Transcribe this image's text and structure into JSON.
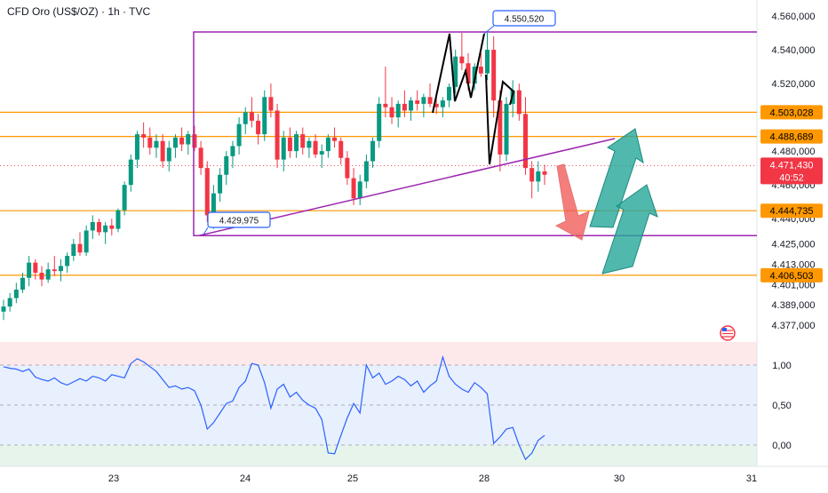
{
  "header": {
    "title": "CFD Oro (US$/OZ) · 1h · TVC"
  },
  "colors": {
    "up": "#089981",
    "down": "#f23645",
    "purple": "#9c27b0",
    "orange": "#ff9800",
    "rsi_line": "#2962ff",
    "price_badge": "#f23645",
    "arrow_green": "#26a69a",
    "arrow_red": "#ef5350"
  },
  "annotations": {
    "peak_label": "4.550,520",
    "low_label": "4.429,975"
  },
  "price_axis": {
    "ticks": [
      "4.560,000",
      "4.540,000",
      "4.520,000",
      "4.480,000",
      "4.460,000",
      "4.440,000",
      "4.425,000",
      "4.413,000",
      "4.401,000",
      "4.389,000",
      "4.377,000"
    ],
    "level_badges": [
      "4.503,028",
      "4.488,689",
      "4.444,735",
      "4.406,503"
    ],
    "current_price": "4.471,430",
    "countdown": "40:52"
  },
  "rsi_axis": {
    "ticks": [
      "1,00",
      "0,50",
      "0,00"
    ]
  },
  "time_axis": {
    "ticks": [
      "23",
      "24",
      "25",
      "28",
      "30",
      "31"
    ]
  },
  "chart_data": {
    "type": "candlestick",
    "title": "CFD Oro (US$/OZ) · 1h · TVC",
    "ylim": [
      4372,
      4565
    ],
    "horizontal_levels": [
      4503.028,
      4488.689,
      4444.735,
      4406.503
    ],
    "rectangle": {
      "top": 4550.52,
      "bottom": 4429.975
    },
    "current_price": 4471.43,
    "candles": [
      [
        4385,
        4392,
        4380,
        4388
      ],
      [
        4388,
        4396,
        4385,
        4393
      ],
      [
        4393,
        4402,
        4390,
        4398
      ],
      [
        4398,
        4408,
        4396,
        4405
      ],
      [
        4405,
        4418,
        4400,
        4414
      ],
      [
        4414,
        4416,
        4404,
        4408
      ],
      [
        4408,
        4412,
        4400,
        4404
      ],
      [
        4404,
        4414,
        4402,
        4410
      ],
      [
        4410,
        4418,
        4406,
        4409
      ],
      [
        4409,
        4416,
        4403,
        4412
      ],
      [
        4412,
        4420,
        4408,
        4418
      ],
      [
        4418,
        4428,
        4415,
        4425
      ],
      [
        4425,
        4432,
        4418,
        4420
      ],
      [
        4420,
        4436,
        4418,
        4433
      ],
      [
        4433,
        4442,
        4428,
        4438
      ],
      [
        4438,
        4440,
        4430,
        4432
      ],
      [
        4432,
        4438,
        4425,
        4436
      ],
      [
        4436,
        4440,
        4430,
        4434
      ],
      [
        4434,
        4446,
        4432,
        4445
      ],
      [
        4445,
        4462,
        4442,
        4460
      ],
      [
        4460,
        4478,
        4456,
        4475
      ],
      [
        4475,
        4492,
        4470,
        4490
      ],
      [
        4490,
        4497,
        4482,
        4488
      ],
      [
        4488,
        4494,
        4478,
        4482
      ],
      [
        4482,
        4490,
        4476,
        4486
      ],
      [
        4486,
        4490,
        4470,
        4474
      ],
      [
        4474,
        4486,
        4468,
        4482
      ],
      [
        4482,
        4490,
        4476,
        4488
      ],
      [
        4488,
        4494,
        4480,
        4484
      ],
      [
        4484,
        4492,
        4478,
        4490
      ],
      [
        4490,
        4495,
        4480,
        4482
      ],
      [
        4482,
        4486,
        4466,
        4470
      ],
      [
        4470,
        4474,
        4438,
        4442
      ],
      [
        4442,
        4460,
        4434,
        4455
      ],
      [
        4455,
        4470,
        4450,
        4466
      ],
      [
        4466,
        4480,
        4460,
        4477
      ],
      [
        4477,
        4486,
        4470,
        4483
      ],
      [
        4483,
        4500,
        4478,
        4496
      ],
      [
        4496,
        4506,
        4490,
        4503
      ],
      [
        4503,
        4512,
        4494,
        4498
      ],
      [
        4498,
        4502,
        4484,
        4490
      ],
      [
        4490,
        4516,
        4486,
        4512
      ],
      [
        4512,
        4520,
        4500,
        4504
      ],
      [
        4504,
        4508,
        4470,
        4475
      ],
      [
        4475,
        4492,
        4468,
        4488
      ],
      [
        4488,
        4494,
        4476,
        4480
      ],
      [
        4480,
        4492,
        4476,
        4490
      ],
      [
        4490,
        4494,
        4478,
        4482
      ],
      [
        4482,
        4488,
        4476,
        4486
      ],
      [
        4486,
        4490,
        4476,
        4478
      ],
      [
        4478,
        4484,
        4470,
        4480
      ],
      [
        4480,
        4490,
        4476,
        4488
      ],
      [
        4488,
        4494,
        4482,
        4486
      ],
      [
        4486,
        4488,
        4472,
        4476
      ],
      [
        4476,
        4480,
        4460,
        4464
      ],
      [
        4464,
        4470,
        4448,
        4452
      ],
      [
        4452,
        4466,
        4448,
        4462
      ],
      [
        4462,
        4478,
        4458,
        4474
      ],
      [
        4474,
        4488,
        4470,
        4486
      ],
      [
        4486,
        4512,
        4482,
        4508
      ],
      [
        4508,
        4530,
        4500,
        4506
      ],
      [
        4506,
        4512,
        4496,
        4500
      ],
      [
        4500,
        4510,
        4494,
        4508
      ],
      [
        4508,
        4516,
        4500,
        4504
      ],
      [
        4504,
        4512,
        4498,
        4510
      ],
      [
        4510,
        4516,
        4504,
        4508
      ],
      [
        4508,
        4514,
        4500,
        4512
      ],
      [
        4512,
        4520,
        4506,
        4508
      ],
      [
        4508,
        4514,
        4502,
        4506
      ],
      [
        4506,
        4512,
        4500,
        4510
      ],
      [
        4510,
        4520,
        4506,
        4518
      ],
      [
        4518,
        4540,
        4514,
        4536
      ],
      [
        4536,
        4550,
        4528,
        4532
      ],
      [
        4532,
        4538,
        4516,
        4520
      ],
      [
        4520,
        4532,
        4516,
        4530
      ],
      [
        4530,
        4538,
        4524,
        4526
      ],
      [
        4526,
        4550,
        4522,
        4540
      ],
      [
        4540,
        4548,
        4500,
        4510
      ],
      [
        4510,
        4516,
        4468,
        4478
      ],
      [
        4478,
        4512,
        4474,
        4508
      ],
      [
        4508,
        4522,
        4500,
        4516
      ],
      [
        4516,
        4520,
        4498,
        4502
      ],
      [
        4502,
        4512,
        4466,
        4470
      ],
      [
        4470,
        4474,
        4452,
        4462
      ],
      [
        4462,
        4474,
        4456,
        4468
      ],
      [
        4468,
        4472,
        4460,
        4466
      ]
    ],
    "rsi": [
      0.98,
      0.96,
      0.95,
      0.92,
      0.95,
      0.85,
      0.82,
      0.8,
      0.84,
      0.78,
      0.75,
      0.79,
      0.83,
      0.8,
      0.86,
      0.84,
      0.8,
      0.88,
      0.86,
      0.84,
      1.02,
      1.08,
      1.04,
      0.98,
      0.92,
      0.82,
      0.72,
      0.74,
      0.7,
      0.72,
      0.68,
      0.5,
      0.2,
      0.28,
      0.4,
      0.52,
      0.55,
      0.72,
      0.8,
      1.02,
      1.0,
      0.78,
      0.46,
      0.7,
      0.76,
      0.6,
      0.66,
      0.56,
      0.5,
      0.46,
      0.32,
      -0.1,
      -0.11,
      0.12,
      0.34,
      0.52,
      0.4,
      1.0,
      0.84,
      0.9,
      0.76,
      0.8,
      0.86,
      0.82,
      0.74,
      0.8,
      0.66,
      0.74,
      0.8,
      1.1,
      0.86,
      0.76,
      0.7,
      0.66,
      0.78,
      0.72,
      0.64,
      0.02,
      0.1,
      0.2,
      0.22,
      0.0,
      -0.18,
      -0.1,
      0.06,
      0.12
    ]
  }
}
